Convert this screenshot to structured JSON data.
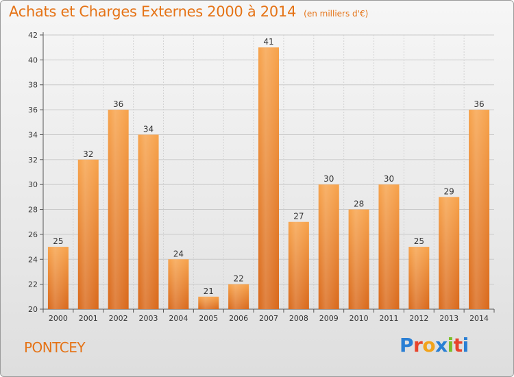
{
  "header": {
    "title": "Achats et Charges Externes 2000 à 2014",
    "unit": "(en milliers d'€)"
  },
  "footer": {
    "commune": "PONTCEY",
    "logo_letters": [
      "P",
      "r",
      "o",
      "x",
      "i",
      "t",
      "i"
    ],
    "logo_colors": [
      "#2a7fd4",
      "#e8442c",
      "#f2a31b",
      "#2a7fd4",
      "#7bbf2a",
      "#e8442c",
      "#2a7fd4"
    ]
  },
  "chart_data": {
    "type": "bar",
    "categories": [
      "2000",
      "2001",
      "2002",
      "2003",
      "2004",
      "2005",
      "2006",
      "2007",
      "2008",
      "2009",
      "2010",
      "2011",
      "2012",
      "2013",
      "2014"
    ],
    "values": [
      25,
      32,
      36,
      34,
      24,
      21,
      22,
      41,
      27,
      30,
      28,
      30,
      25,
      29,
      36
    ],
    "ylim": [
      20,
      42
    ],
    "yticks": [
      20,
      22,
      24,
      26,
      28,
      30,
      32,
      34,
      36,
      38,
      40,
      42
    ],
    "grid": true,
    "bar_color_top": "#f7a24a",
    "bar_color_bottom": "#d9681a",
    "title": "Achats et Charges Externes 2000 à 2014",
    "xlabel": "",
    "ylabel": ""
  }
}
